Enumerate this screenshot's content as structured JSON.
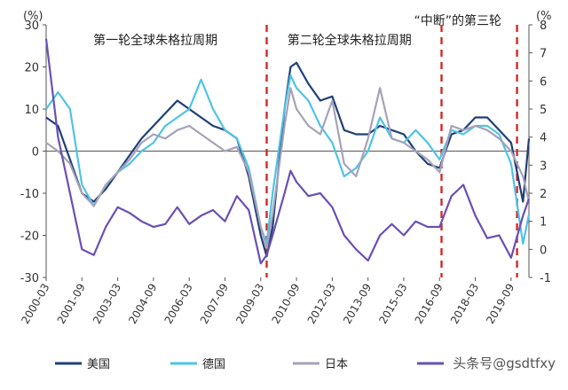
{
  "chart_data": {
    "type": "line",
    "left_unit": "(%)",
    "right_unit": "(%",
    "left_ylim": [
      -30,
      30
    ],
    "right_ylim": [
      -1,
      8
    ],
    "left_ticks": [
      "30",
      "20",
      "10",
      "0",
      "-10",
      "-20",
      "-30"
    ],
    "right_ticks": [
      "8",
      "7",
      "6",
      "5",
      "4",
      "3",
      "2",
      "1",
      "0",
      "-1"
    ],
    "x_ticks": [
      "2000-03",
      "2001-09",
      "2003-03",
      "2004-09",
      "2006-03",
      "2007-09",
      "2009-03",
      "2010-09",
      "2012-03",
      "2013-09",
      "2015-03",
      "2016-09",
      "2018-03",
      "2019-09"
    ],
    "x_range": [
      "2000-03",
      "2020-06"
    ],
    "annotations": [
      "第一轮全球朱格拉周期",
      "第二轮全球朱格拉周期",
      "“中断”的第三轮"
    ],
    "dashed_lines_at": [
      "2009-06",
      "2016-10",
      "2019-12"
    ],
    "grid": false,
    "legend_position": "bottom",
    "series": [
      {
        "name": "美国",
        "axis": "left",
        "color": "#1f3f77",
        "points": [
          [
            "2000-03",
            8
          ],
          [
            "2000-09",
            6
          ],
          [
            "2001-03",
            -2
          ],
          [
            "2001-09",
            -10
          ],
          [
            "2002-03",
            -12
          ],
          [
            "2002-09",
            -9
          ],
          [
            "2003-03",
            -5
          ],
          [
            "2003-09",
            -1
          ],
          [
            "2004-03",
            3
          ],
          [
            "2004-09",
            6
          ],
          [
            "2005-03",
            9
          ],
          [
            "2005-09",
            12
          ],
          [
            "2006-03",
            10
          ],
          [
            "2006-09",
            8
          ],
          [
            "2007-03",
            6
          ],
          [
            "2007-09",
            5
          ],
          [
            "2008-03",
            3
          ],
          [
            "2008-09",
            -6
          ],
          [
            "2009-03",
            -20
          ],
          [
            "2009-06",
            -25
          ],
          [
            "2009-09",
            -18
          ],
          [
            "2010-03",
            10
          ],
          [
            "2010-06",
            20
          ],
          [
            "2010-09",
            21
          ],
          [
            "2011-03",
            16
          ],
          [
            "2011-09",
            12
          ],
          [
            "2012-03",
            13
          ],
          [
            "2012-09",
            5
          ],
          [
            "2013-03",
            4
          ],
          [
            "2013-09",
            4
          ],
          [
            "2014-03",
            6
          ],
          [
            "2014-09",
            5
          ],
          [
            "2015-03",
            4
          ],
          [
            "2015-09",
            0
          ],
          [
            "2016-03",
            -3
          ],
          [
            "2016-09",
            -4
          ],
          [
            "2017-03",
            4
          ],
          [
            "2017-09",
            5
          ],
          [
            "2018-03",
            8
          ],
          [
            "2018-09",
            8
          ],
          [
            "2019-03",
            5
          ],
          [
            "2019-09",
            2
          ],
          [
            "2020-03",
            -12
          ],
          [
            "2020-06",
            3
          ]
        ]
      },
      {
        "name": "德国",
        "axis": "left",
        "color": "#4fc3e6",
        "points": [
          [
            "2000-03",
            10
          ],
          [
            "2000-09",
            14
          ],
          [
            "2001-03",
            10
          ],
          [
            "2001-09",
            -8
          ],
          [
            "2002-03",
            -13
          ],
          [
            "2002-09",
            -8
          ],
          [
            "2003-03",
            -5
          ],
          [
            "2003-09",
            -3
          ],
          [
            "2004-03",
            0
          ],
          [
            "2004-09",
            2
          ],
          [
            "2005-03",
            6
          ],
          [
            "2005-09",
            8
          ],
          [
            "2006-03",
            10
          ],
          [
            "2006-09",
            17
          ],
          [
            "2007-03",
            10
          ],
          [
            "2007-09",
            5
          ],
          [
            "2008-03",
            3
          ],
          [
            "2008-09",
            -4
          ],
          [
            "2009-03",
            -18
          ],
          [
            "2009-06",
            -22
          ],
          [
            "2009-09",
            -10
          ],
          [
            "2010-03",
            10
          ],
          [
            "2010-06",
            18
          ],
          [
            "2010-09",
            15
          ],
          [
            "2011-03",
            12
          ],
          [
            "2011-09",
            6
          ],
          [
            "2012-03",
            2
          ],
          [
            "2012-09",
            -6
          ],
          [
            "2013-03",
            -4
          ],
          [
            "2013-09",
            0
          ],
          [
            "2014-03",
            8
          ],
          [
            "2014-09",
            3
          ],
          [
            "2015-03",
            2
          ],
          [
            "2015-09",
            5
          ],
          [
            "2016-03",
            2
          ],
          [
            "2016-09",
            -2
          ],
          [
            "2017-03",
            5
          ],
          [
            "2017-09",
            4
          ],
          [
            "2018-03",
            6
          ],
          [
            "2018-09",
            6
          ],
          [
            "2019-03",
            4
          ],
          [
            "2019-09",
            -3
          ],
          [
            "2020-03",
            -22
          ],
          [
            "2020-06",
            -15
          ]
        ]
      },
      {
        "name": "日本",
        "axis": "left",
        "color": "#a7a2b8",
        "points": [
          [
            "2000-03",
            2
          ],
          [
            "2000-09",
            0
          ],
          [
            "2001-03",
            -3
          ],
          [
            "2001-09",
            -10
          ],
          [
            "2002-03",
            -13
          ],
          [
            "2002-09",
            -8
          ],
          [
            "2003-03",
            -5
          ],
          [
            "2003-09",
            -2
          ],
          [
            "2004-03",
            2
          ],
          [
            "2004-09",
            4
          ],
          [
            "2005-03",
            3
          ],
          [
            "2005-09",
            5
          ],
          [
            "2006-03",
            6
          ],
          [
            "2006-09",
            4
          ],
          [
            "2007-03",
            2
          ],
          [
            "2007-09",
            0
          ],
          [
            "2008-03",
            1
          ],
          [
            "2008-09",
            -5
          ],
          [
            "2009-03",
            -18
          ],
          [
            "2009-06",
            -23
          ],
          [
            "2009-09",
            -15
          ],
          [
            "2010-03",
            6
          ],
          [
            "2010-06",
            15
          ],
          [
            "2010-09",
            10
          ],
          [
            "2011-03",
            6
          ],
          [
            "2011-09",
            4
          ],
          [
            "2012-03",
            12
          ],
          [
            "2012-09",
            -3
          ],
          [
            "2013-03",
            -6
          ],
          [
            "2013-09",
            3
          ],
          [
            "2014-03",
            15
          ],
          [
            "2014-09",
            3
          ],
          [
            "2015-03",
            2
          ],
          [
            "2015-09",
            0
          ],
          [
            "2016-03",
            -2
          ],
          [
            "2016-09",
            -5
          ],
          [
            "2017-03",
            6
          ],
          [
            "2017-09",
            5
          ],
          [
            "2018-03",
            6
          ],
          [
            "2018-09",
            5
          ],
          [
            "2019-03",
            3
          ],
          [
            "2019-09",
            0
          ],
          [
            "2020-03",
            -6
          ],
          [
            "2020-06",
            -12
          ]
        ]
      },
      {
        "name": "",
        "axis": "right",
        "color": "#6b4fb5",
        "points": [
          [
            "2000-03",
            7.5
          ],
          [
            "2000-09",
            4.0
          ],
          [
            "2001-03",
            2.0
          ],
          [
            "2001-09",
            0.0
          ],
          [
            "2002-03",
            -0.2
          ],
          [
            "2002-09",
            0.8
          ],
          [
            "2003-03",
            1.5
          ],
          [
            "2003-09",
            1.3
          ],
          [
            "2004-03",
            1.0
          ],
          [
            "2004-09",
            0.8
          ],
          [
            "2005-03",
            0.9
          ],
          [
            "2005-09",
            1.5
          ],
          [
            "2006-03",
            0.9
          ],
          [
            "2006-09",
            1.2
          ],
          [
            "2007-03",
            1.4
          ],
          [
            "2007-09",
            1.0
          ],
          [
            "2008-03",
            1.9
          ],
          [
            "2008-09",
            1.4
          ],
          [
            "2009-03",
            -0.5
          ],
          [
            "2009-06",
            -0.2
          ],
          [
            "2009-09",
            0.5
          ],
          [
            "2010-03",
            2.0
          ],
          [
            "2010-06",
            2.8
          ],
          [
            "2010-09",
            2.4
          ],
          [
            "2011-03",
            1.9
          ],
          [
            "2011-09",
            2.0
          ],
          [
            "2012-03",
            1.5
          ],
          [
            "2012-09",
            0.5
          ],
          [
            "2013-03",
            0.0
          ],
          [
            "2013-09",
            -0.4
          ],
          [
            "2014-03",
            0.5
          ],
          [
            "2014-09",
            0.9
          ],
          [
            "2015-03",
            0.5
          ],
          [
            "2015-09",
            1.0
          ],
          [
            "2016-03",
            0.8
          ],
          [
            "2016-09",
            0.8
          ],
          [
            "2017-03",
            1.9
          ],
          [
            "2017-09",
            2.3
          ],
          [
            "2018-03",
            1.2
          ],
          [
            "2018-09",
            0.4
          ],
          [
            "2019-03",
            0.5
          ],
          [
            "2019-09",
            -0.3
          ],
          [
            "2020-03",
            1.2
          ],
          [
            "2020-06",
            1.8
          ]
        ]
      }
    ],
    "legend": [
      "美国",
      "德国",
      "日本",
      ""
    ]
  },
  "watermark": "头条号@gsdtfxy"
}
